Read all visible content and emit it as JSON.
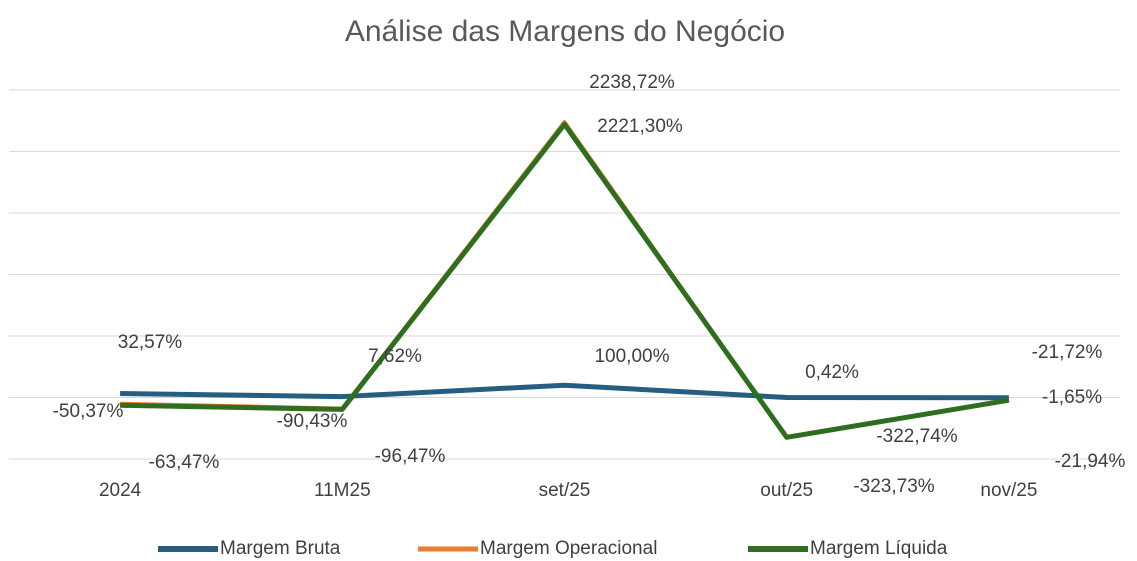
{
  "chart_data": {
    "type": "line",
    "title": "Análise das Margens do Negócio",
    "categories": [
      "2024",
      "11M25",
      "set/25",
      "out/25",
      "nov/25"
    ],
    "series": [
      {
        "name": "Margem Bruta",
        "color": "#255e80",
        "values": [
          32.57,
          7.62,
          100.0,
          0.42,
          -1.65
        ],
        "value_labels": [
          "32,57%",
          "7,62%",
          "100,00%",
          "0,42%",
          "-1,65%"
        ]
      },
      {
        "name": "Margem Operacional",
        "color": "#ed7d31",
        "values": [
          -50.37,
          -90.43,
          2238.72,
          -322.74,
          -21.72
        ],
        "value_labels": [
          "-50,37%",
          "-90,43%",
          "2238,72%",
          "-322,74%",
          "-21,72%"
        ]
      },
      {
        "name": "Margem Líquida",
        "color": "#2e6e1f",
        "values": [
          -63.47,
          -96.47,
          2221.3,
          -323.73,
          -21.94
        ],
        "value_labels": [
          "-63,47%",
          "-96,47%",
          "2221,30%",
          "-323,73%",
          "-21,94%"
        ]
      }
    ],
    "ylim": [
      -500,
      2500
    ],
    "yticks": [
      -500,
      0,
      500,
      1000,
      1500,
      2000,
      2500
    ],
    "grid": true,
    "legend": "bottom"
  }
}
